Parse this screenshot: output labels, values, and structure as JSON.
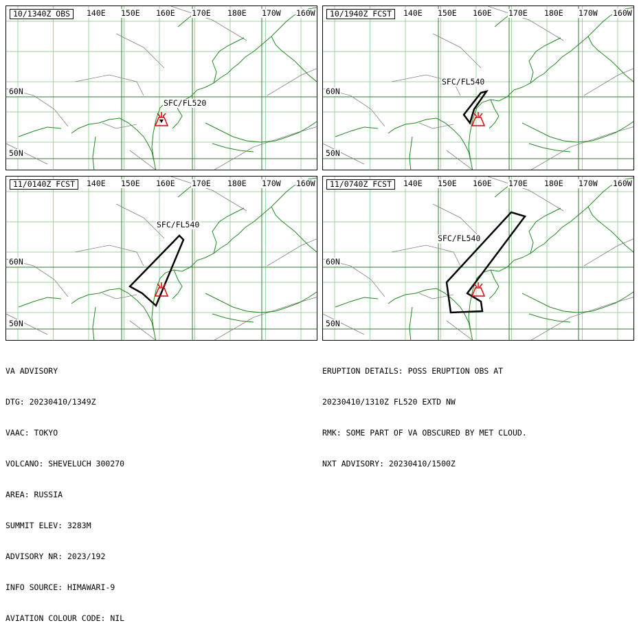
{
  "panels": [
    {
      "time": "10/1340Z OBS",
      "ash_label": "SFC/FL520"
    },
    {
      "time": "10/1940Z FCST",
      "ash_label": "SFC/FL540"
    },
    {
      "time": "11/0140Z FCST",
      "ash_label": "SFC/FL540"
    },
    {
      "time": "11/0740Z FCST",
      "ash_label": "SFC/FL540"
    }
  ],
  "lon_labels": [
    "140E",
    "150E",
    "160E",
    "170E",
    "180E",
    "170W",
    "160W"
  ],
  "lat_labels": [
    "60N",
    "50N"
  ],
  "advisory_left": [
    "VA ADVISORY",
    "DTG: 20230410/1349Z",
    "VAAC: TOKYO",
    "VOLCANO: SHEVELUCH 300270",
    "AREA: RUSSIA",
    "SUMMIT ELEV: 3283M",
    "ADVISORY NR: 2023/192",
    "INFO SOURCE: HIMAWARI-9",
    "AVIATION COLOUR CODE: NIL"
  ],
  "advisory_right": [
    "ERUPTION DETAILS: POSS ERUPTION OBS AT",
    "20230410/1310Z FL520 EXTD NW",
    "RMK: SOME PART OF VA OBSCURED BY MET CLOUD.",
    "NXT ADVISORY: 20230410/1500Z"
  ],
  "colors": {
    "grid": "#9ad69a",
    "coast": "#1f8a1f",
    "major_grid": "#2e7d2e",
    "volcano": "#e00000",
    "ash": "#000000",
    "fir": "#808080"
  },
  "icons": {
    "volcano": "volcano-icon"
  }
}
